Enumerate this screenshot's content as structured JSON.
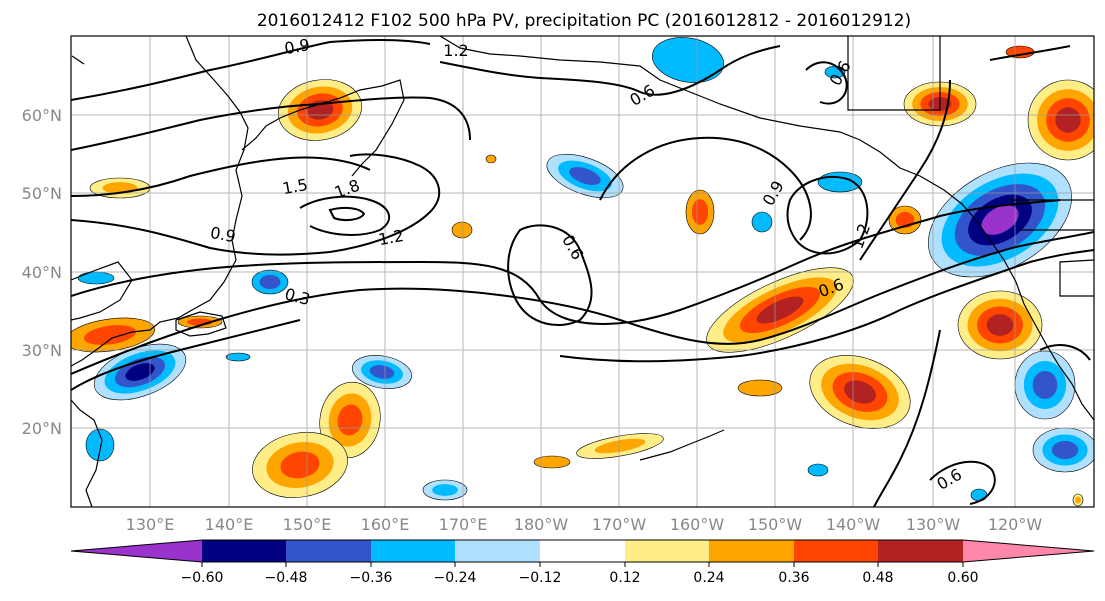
{
  "title": "2016012412 F102 500 hPa PV, precipitation PC (2016012812 - 2016012912)",
  "lat_labels": [
    "60°N",
    "50°N",
    "40°N",
    "30°N",
    "20°N"
  ],
  "lon_labels": [
    "130°E",
    "140°E",
    "150°E",
    "160°E",
    "170°E",
    "180°W",
    "170°W",
    "160°W",
    "150°W",
    "140°W",
    "130°W",
    "120°W"
  ],
  "contour_labels": [
    "0.9",
    "1.2",
    "0.6",
    "0.6",
    "1.5",
    "1.8",
    "0.9",
    "1.2",
    "0.3",
    "0.6",
    "0.9",
    "1.2",
    "0.6",
    "0.6"
  ],
  "colorbar": {
    "ticks": [
      "−0.60",
      "−0.48",
      "−0.36",
      "−0.24",
      "−0.12",
      "0.12",
      "0.24",
      "0.36",
      "0.48",
      "0.60"
    ],
    "colors": [
      "#9933cc",
      "#000080",
      "#3355cc",
      "#00bbff",
      "#b0e0ff",
      "#ffffff",
      "#ffee88",
      "#ffa500",
      "#ff4500",
      "#b22222",
      "#ff88aa"
    ]
  },
  "fill_colors": {
    "n5": "#9933cc",
    "n4": "#000080",
    "n3": "#3355cc",
    "n2": "#00bbff",
    "n1": "#b0e0ff",
    "p1": "#ffee88",
    "p2": "#ffa500",
    "p3": "#ff4500",
    "p4": "#b22222",
    "p5": "#ff88aa"
  }
}
